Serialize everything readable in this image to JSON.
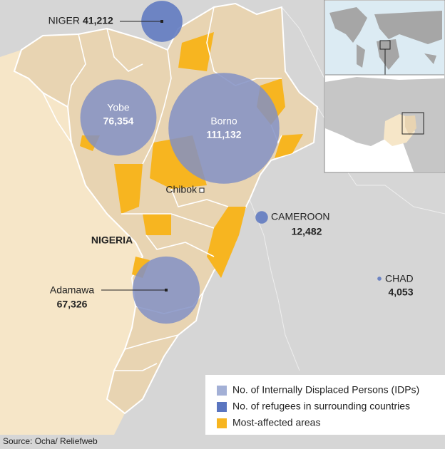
{
  "map": {
    "locations": [
      {
        "name": "NIGER",
        "value": 41212,
        "value_label": "41,212",
        "color": "#5a75c0"
      },
      {
        "name": "Yobe",
        "value": 76354,
        "value_label": "76,354",
        "color": "#8391c4"
      },
      {
        "name": "Borno",
        "value": 111132,
        "value_label": "111,132",
        "color": "#8391c4"
      },
      {
        "name": "CAMEROON",
        "value": 12482,
        "value_label": "12,482",
        "color": "#5a75c0"
      },
      {
        "name": "Adamawa",
        "value": 67326,
        "value_label": "67,326",
        "color": "#8391c4"
      },
      {
        "name": "CHAD",
        "value": 4053,
        "value_label": "4,053",
        "color": "#5a75c0"
      }
    ],
    "places": {
      "town": "Chibok",
      "country": "NIGERIA"
    },
    "legend": [
      {
        "label": "No. of Internally Displaced Persons (IDPs)",
        "color": "#a3b0d6"
      },
      {
        "label": "No. of refugees in surrounding countries",
        "color": "#5a75c0"
      },
      {
        "label": "Most-affected areas",
        "color": "#f7b520"
      }
    ],
    "source": "Source: Ocha/ Reliefweb"
  }
}
